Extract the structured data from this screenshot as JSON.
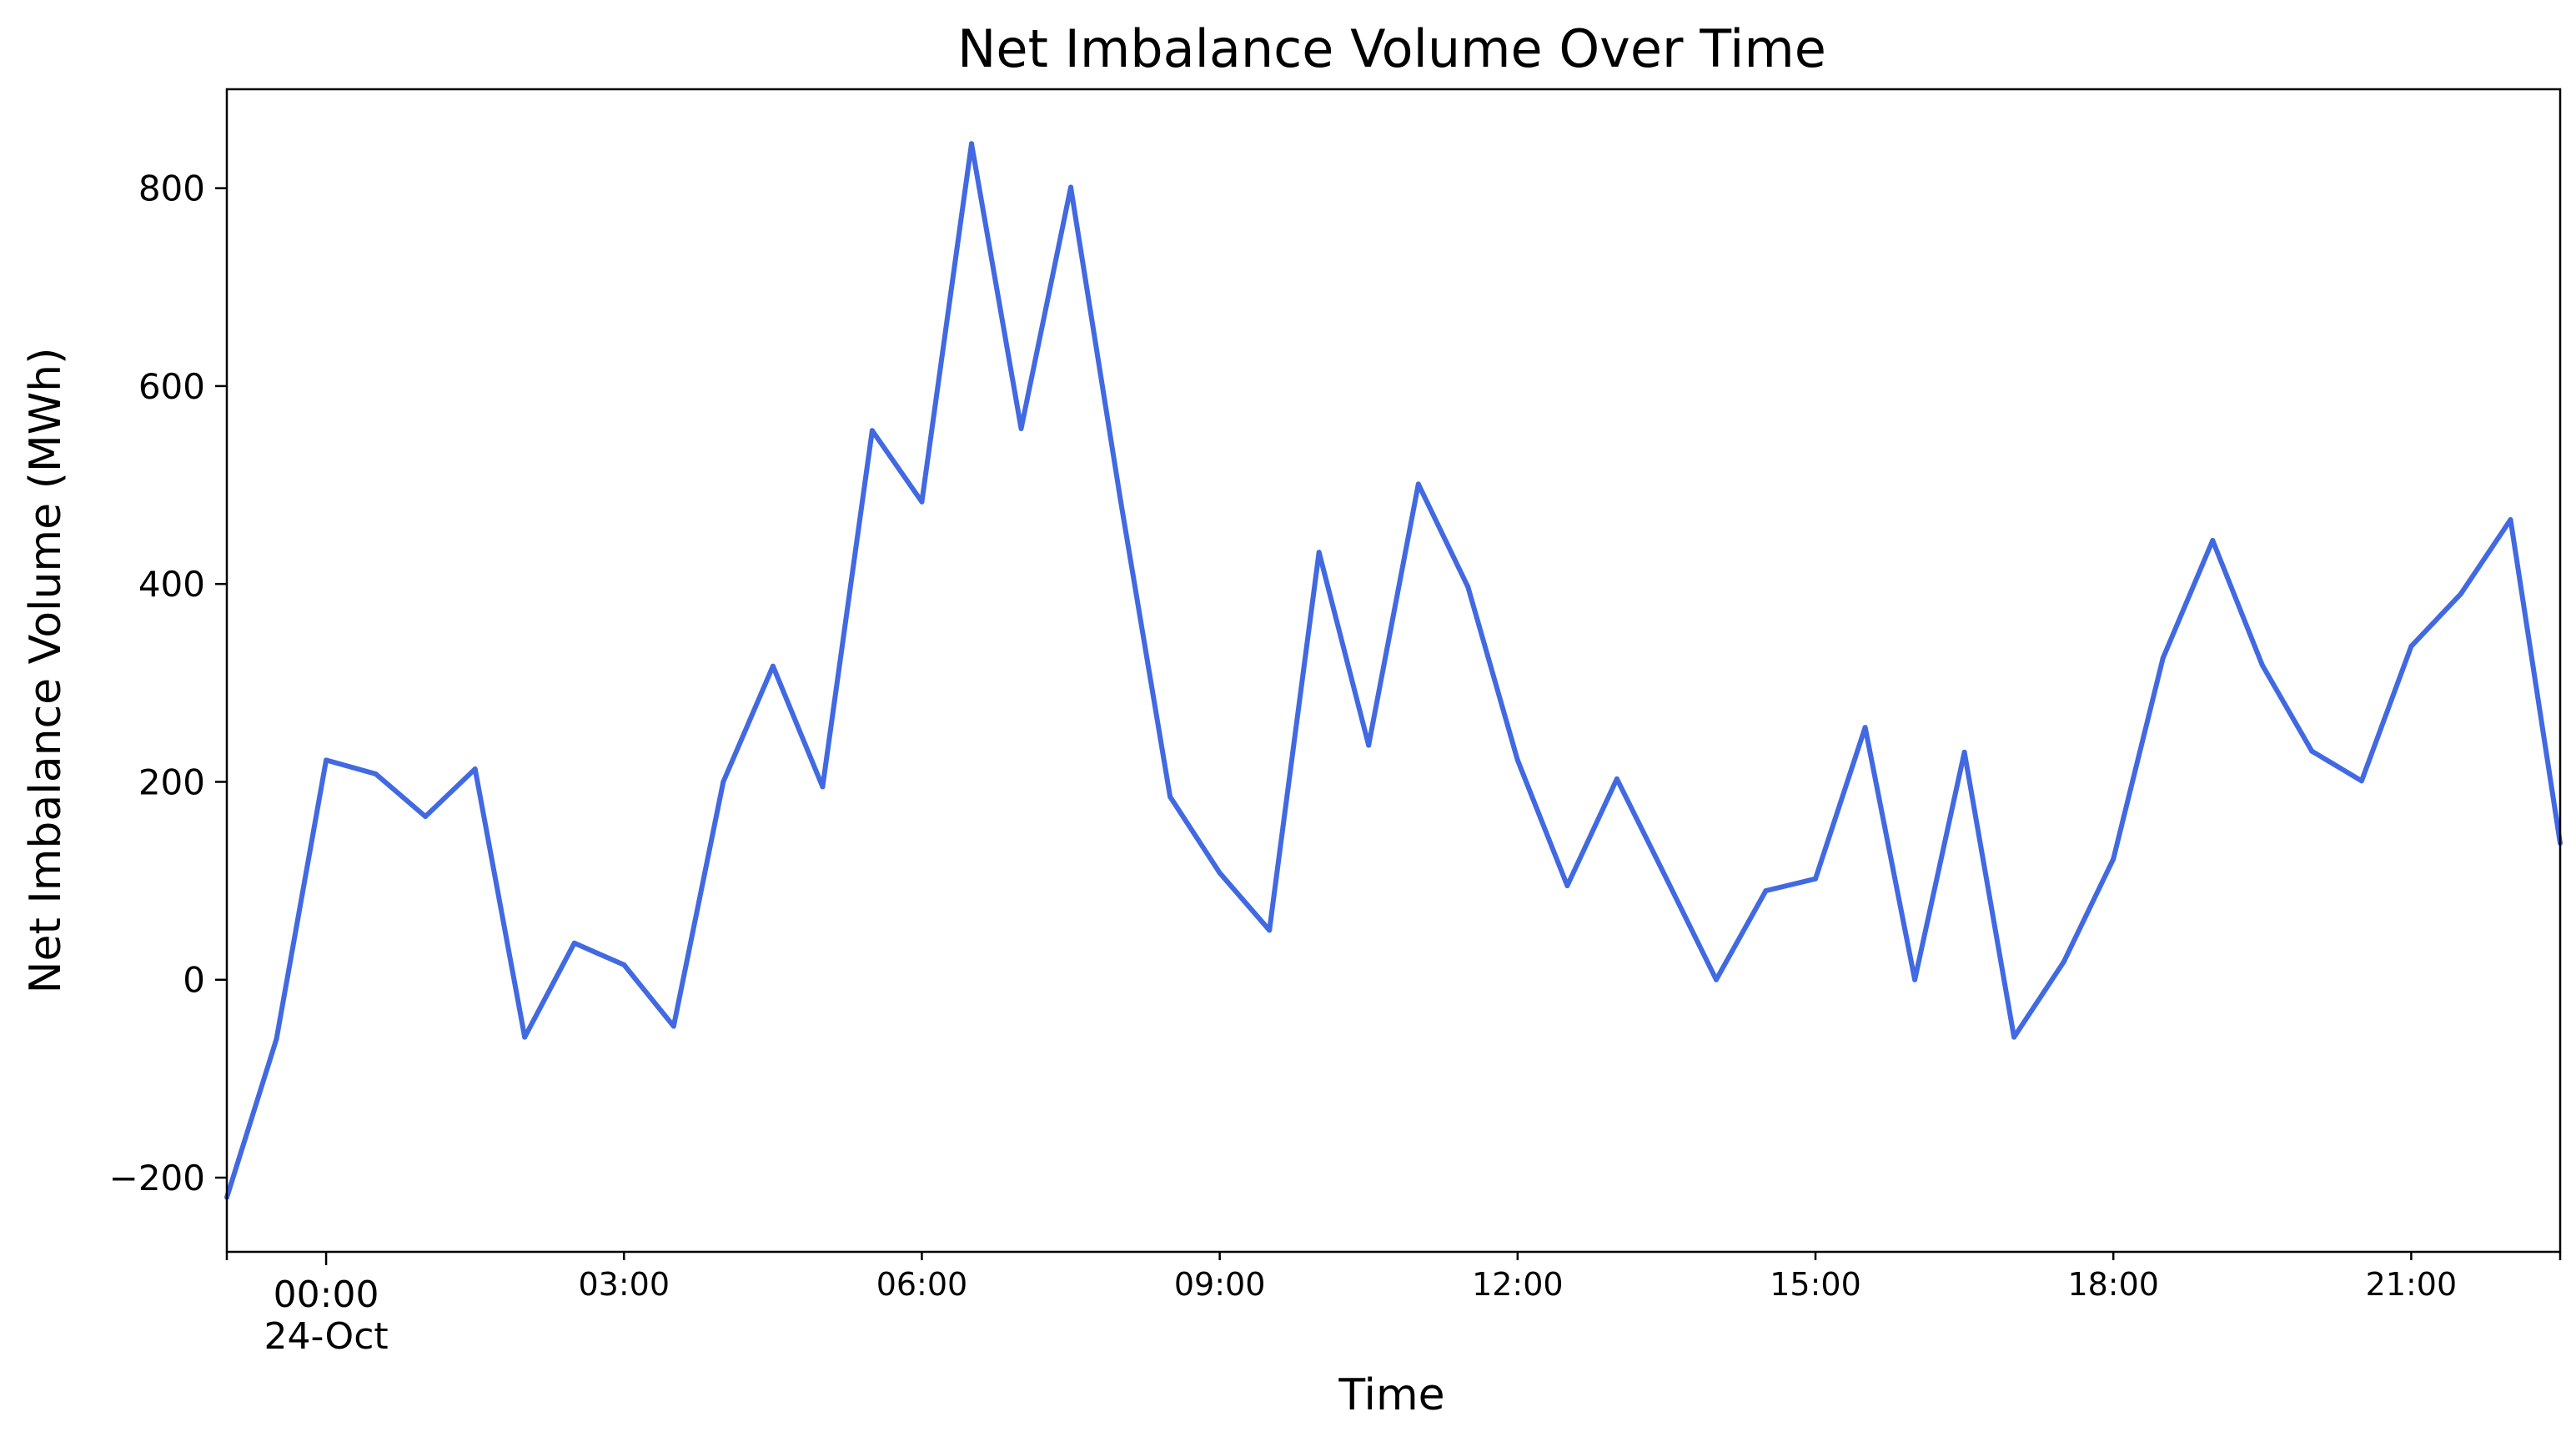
{
  "chart_data": {
    "type": "line",
    "title": "Net Imbalance Volume Over Time",
    "xlabel": "Time",
    "ylabel": "Net Imbalance Volume (MWh)",
    "x_is_time": true,
    "x_range_hours": [
      -1,
      22.5
    ],
    "ylim": [
      -275,
      900
    ],
    "yticks": [
      -200,
      0,
      200,
      400,
      600,
      800
    ],
    "ytick_labels": [
      "−200",
      "0",
      "200",
      "400",
      "600",
      "800"
    ],
    "xticks_major": [
      {
        "hour": 0,
        "label": "00:00",
        "sublabel": "24-Oct"
      }
    ],
    "xticks_minor": [
      {
        "hour": 3,
        "label": "03:00"
      },
      {
        "hour": 6,
        "label": "06:00"
      },
      {
        "hour": 9,
        "label": "09:00"
      },
      {
        "hour": 12,
        "label": "12:00"
      },
      {
        "hour": 15,
        "label": "15:00"
      },
      {
        "hour": 18,
        "label": "18:00"
      },
      {
        "hour": 21,
        "label": "21:00"
      }
    ],
    "grid": false,
    "legend": "none",
    "series": [
      {
        "color": "#4169E1",
        "x": [
          -1,
          -0.5,
          0,
          0.5,
          1,
          1.5,
          2,
          2.5,
          3,
          3.5,
          4,
          4.5,
          5,
          5.5,
          6,
          6.5,
          7,
          7.5,
          8,
          8.5,
          9,
          9.5,
          10,
          10.5,
          11,
          11.5,
          12,
          12.5,
          13,
          13.5,
          14,
          14.5,
          15,
          15.5,
          16,
          16.5,
          17,
          17.5,
          18,
          18.5,
          19,
          19.5,
          20,
          20.5,
          21,
          21.5,
          22,
          22.5
        ],
        "values": [
          -220,
          -60,
          222,
          208,
          165,
          213,
          -58,
          37,
          15,
          -47,
          200,
          317,
          195,
          555,
          483,
          845,
          557,
          801,
          485,
          185,
          108,
          50,
          432,
          237,
          501,
          397,
          222,
          95,
          203,
          102,
          0,
          90,
          102,
          255,
          0,
          230,
          -58,
          18,
          122,
          325,
          444,
          318,
          231,
          201,
          337,
          390,
          465,
          138
        ]
      }
    ]
  }
}
